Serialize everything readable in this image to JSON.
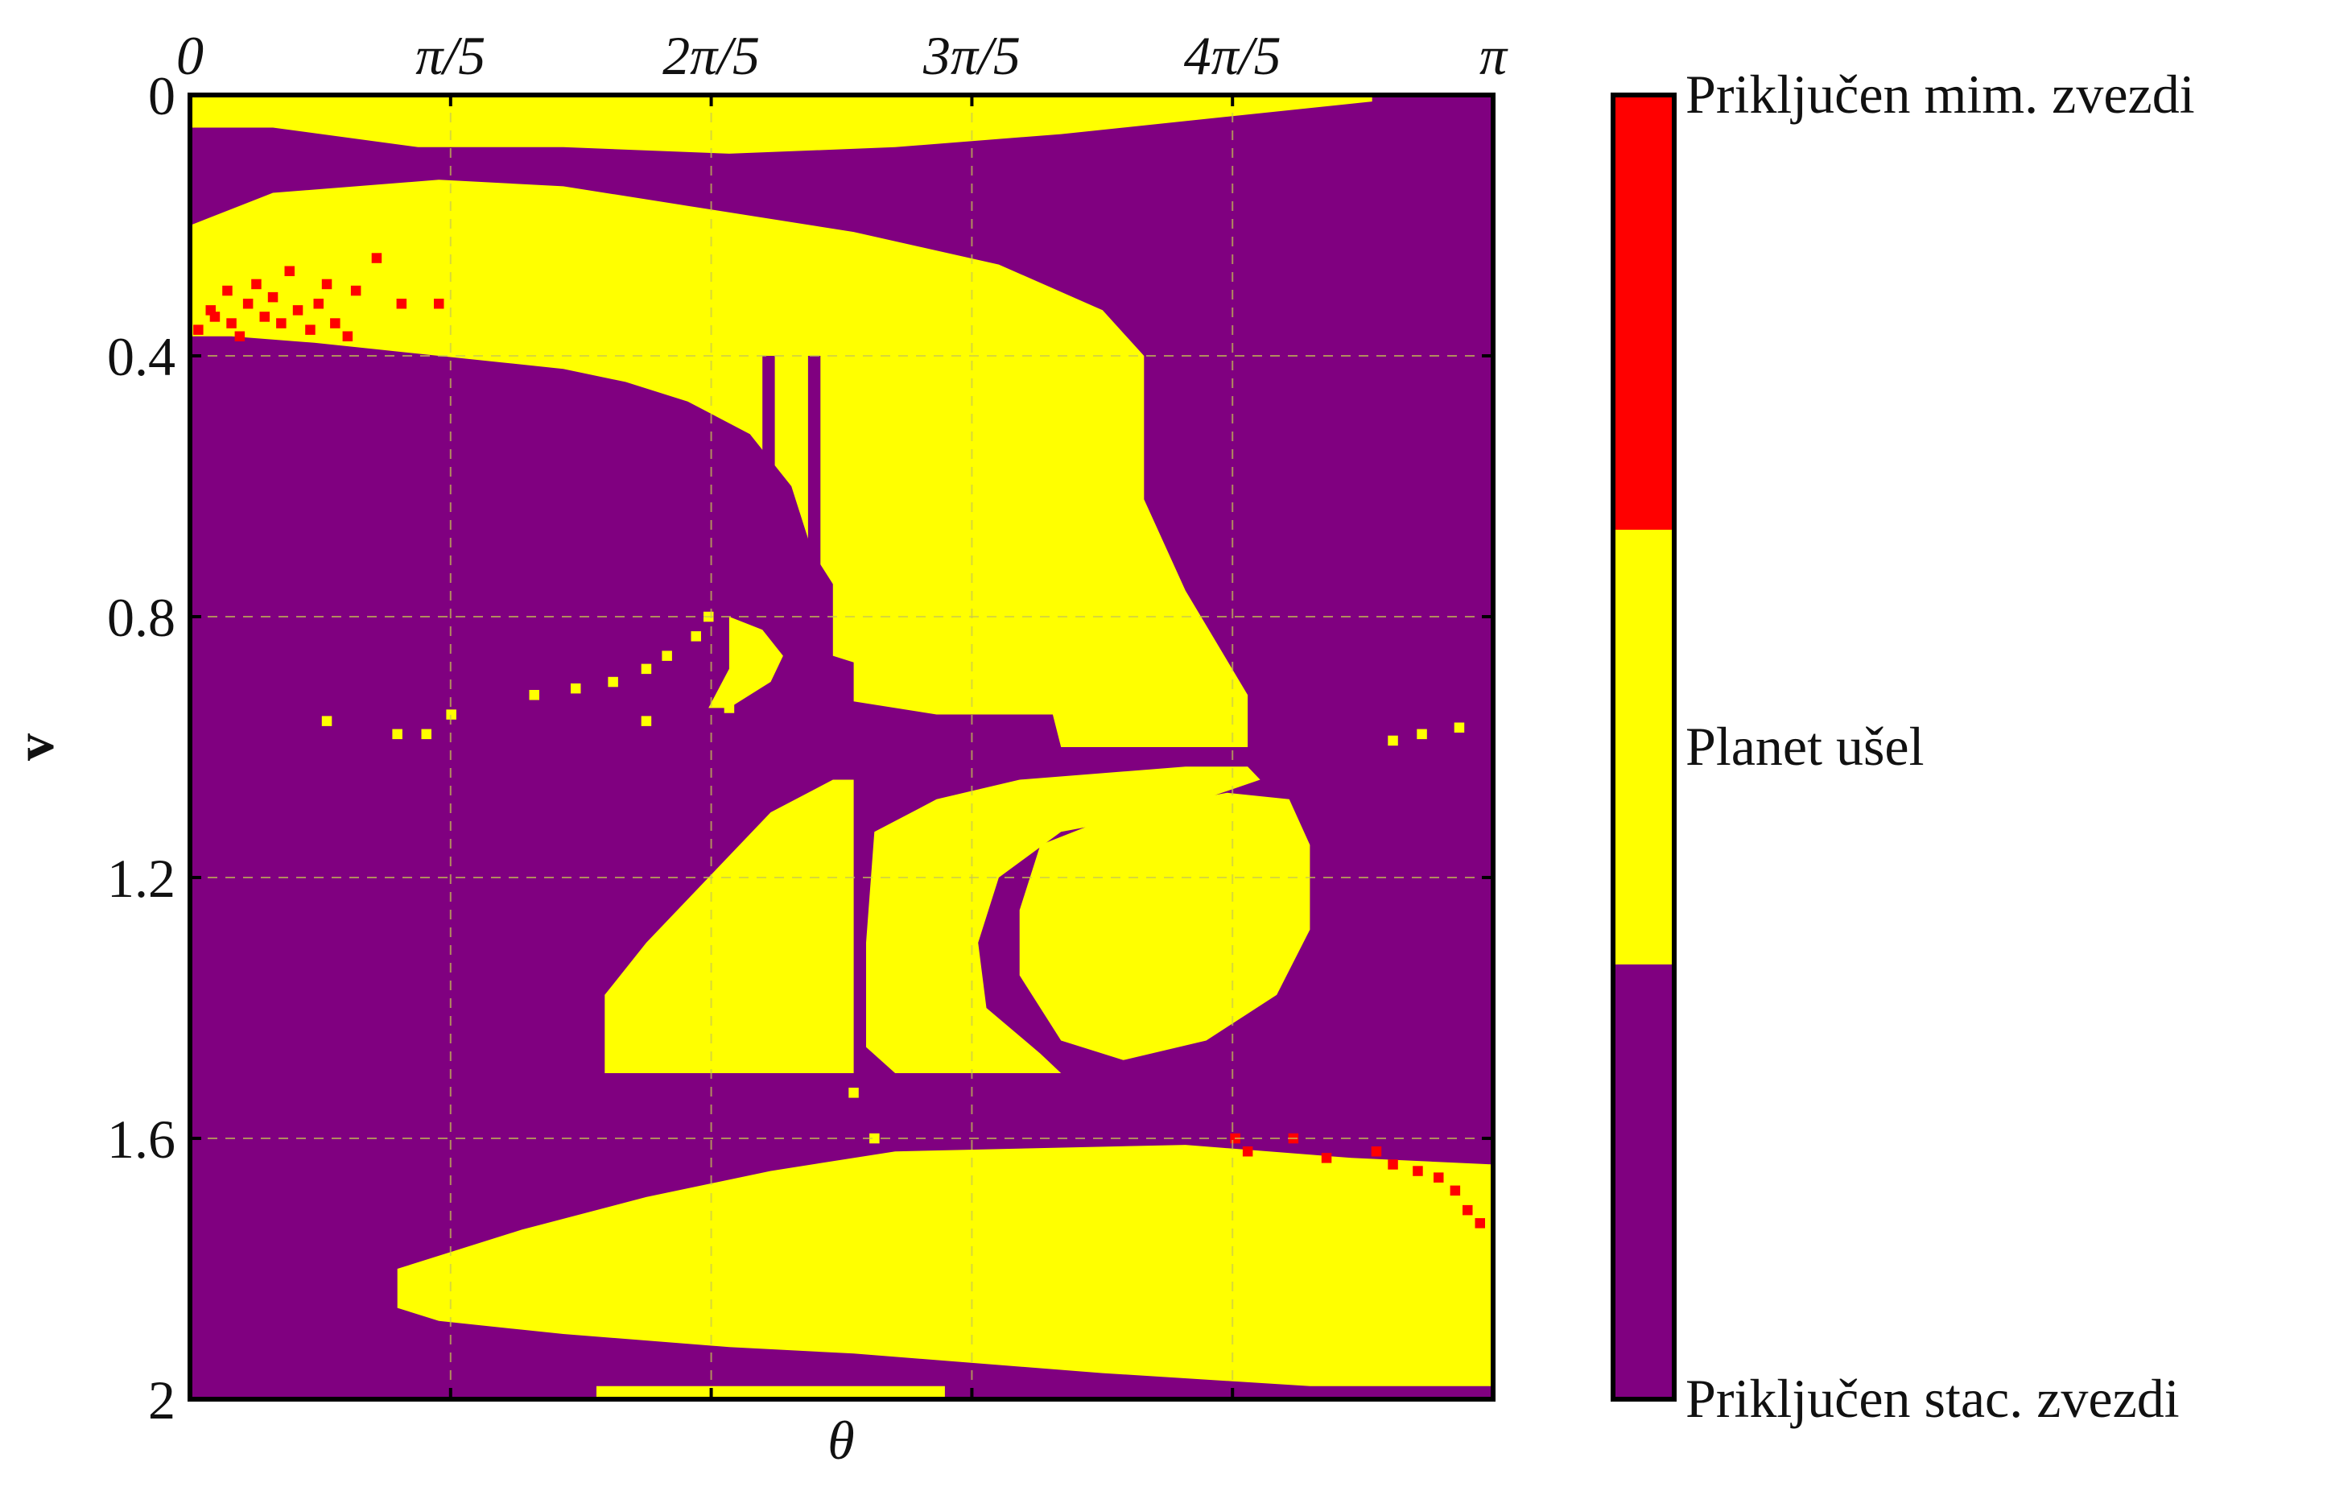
{
  "chart_data": {
    "type": "heatmap",
    "title": "",
    "xlabel": "θ",
    "ylabel": "v",
    "xlim": [
      0,
      3.14159
    ],
    "ylim": [
      0,
      2
    ],
    "y_inverted": true,
    "x_ticks": [
      {
        "value": 0,
        "label": "0"
      },
      {
        "value": 0.6283,
        "label": "π/5"
      },
      {
        "value": 1.2566,
        "label": "2π/5"
      },
      {
        "value": 1.885,
        "label": "3π/5"
      },
      {
        "value": 2.5133,
        "label": "4π/5"
      },
      {
        "value": 3.1416,
        "label": "π"
      }
    ],
    "x_ticks_position": "top",
    "y_ticks": [
      {
        "value": 0,
        "label": "0"
      },
      {
        "value": 0.4,
        "label": "0.4"
      },
      {
        "value": 0.8,
        "label": "0.8"
      },
      {
        "value": 1.2,
        "label": "1.2"
      },
      {
        "value": 1.6,
        "label": "1.6"
      },
      {
        "value": 2,
        "label": "2"
      }
    ],
    "grid": true,
    "colors": {
      "stationary": "#800080",
      "escaped": "#ffff00",
      "passing": "#ff0000",
      "grid": "#c8c850",
      "frame": "#000000"
    },
    "colorbar": {
      "position": "right",
      "entries": [
        {
          "key": "passing",
          "label": "Priključen mim. zvezdi"
        },
        {
          "key": "escaped",
          "label": "Planet ušel"
        },
        {
          "key": "stationary",
          "label": "Priključen stac. zvezdi"
        }
      ]
    },
    "background_class": "stationary",
    "regions": [
      {
        "class": "escaped",
        "name": "top-band",
        "points": [
          [
            0,
            0
          ],
          [
            2.85,
            0
          ],
          [
            2.85,
            0.01
          ],
          [
            2.4,
            0.04
          ],
          [
            2.1,
            0.06
          ],
          [
            1.7,
            0.08
          ],
          [
            1.3,
            0.09
          ],
          [
            0.9,
            0.08
          ],
          [
            0.55,
            0.08
          ],
          [
            0.2,
            0.05
          ],
          [
            0,
            0.05
          ]
        ]
      },
      {
        "class": "escaped",
        "name": "upper-arc",
        "points": [
          [
            0,
            0.2
          ],
          [
            0.2,
            0.15
          ],
          [
            0.6,
            0.13
          ],
          [
            0.9,
            0.14
          ],
          [
            1.2,
            0.17
          ],
          [
            1.6,
            0.21
          ],
          [
            1.95,
            0.26
          ],
          [
            2.2,
            0.33
          ],
          [
            2.3,
            0.4
          ],
          [
            2.3,
            0.62
          ],
          [
            2.4,
            0.76
          ],
          [
            2.55,
            0.92
          ],
          [
            2.55,
            1.0
          ],
          [
            2.1,
            1.0
          ],
          [
            2.08,
            0.95
          ],
          [
            1.8,
            0.95
          ],
          [
            1.6,
            0.93
          ],
          [
            1.6,
            0.87
          ],
          [
            1.55,
            0.86
          ],
          [
            1.55,
            0.75
          ],
          [
            1.5,
            0.7
          ],
          [
            1.45,
            0.6
          ],
          [
            1.35,
            0.52
          ],
          [
            1.2,
            0.47
          ],
          [
            1.05,
            0.44
          ],
          [
            0.9,
            0.42
          ],
          [
            0.75,
            0.41
          ],
          [
            0.6,
            0.4
          ],
          [
            0.45,
            0.39
          ],
          [
            0.3,
            0.38
          ],
          [
            0.1,
            0.37
          ],
          [
            0,
            0.37
          ]
        ]
      },
      {
        "class": "stationary",
        "name": "stripe-a",
        "points": [
          [
            1.38,
            0.4
          ],
          [
            1.41,
            0.4
          ],
          [
            1.41,
            0.8
          ],
          [
            1.38,
            0.8
          ]
        ]
      },
      {
        "class": "stationary",
        "name": "stripe-b",
        "points": [
          [
            1.49,
            0.4
          ],
          [
            1.52,
            0.4
          ],
          [
            1.52,
            0.75
          ],
          [
            1.49,
            0.75
          ]
        ]
      },
      {
        "class": "escaped",
        "name": "arc-tail",
        "points": [
          [
            1.3,
            0.8
          ],
          [
            1.38,
            0.82
          ],
          [
            1.43,
            0.86
          ],
          [
            1.4,
            0.9
          ],
          [
            1.3,
            0.94
          ],
          [
            1.25,
            0.94
          ],
          [
            1.3,
            0.88
          ]
        ]
      },
      {
        "class": "escaped",
        "name": "left-triangle",
        "points": [
          [
            1.55,
            1.05
          ],
          [
            1.6,
            1.05
          ],
          [
            1.6,
            1.5
          ],
          [
            1.0,
            1.5
          ],
          [
            1.0,
            1.38
          ],
          [
            1.1,
            1.3
          ],
          [
            1.25,
            1.2
          ],
          [
            1.4,
            1.1
          ]
        ]
      },
      {
        "class": "escaped",
        "name": "middle-wedge",
        "points": [
          [
            1.65,
            1.13
          ],
          [
            1.8,
            1.08
          ],
          [
            2.0,
            1.05
          ],
          [
            2.4,
            1.03
          ],
          [
            2.55,
            1.03
          ],
          [
            2.58,
            1.05
          ],
          [
            2.35,
            1.1
          ],
          [
            2.1,
            1.13
          ],
          [
            1.95,
            1.2
          ],
          [
            1.9,
            1.3
          ],
          [
            1.92,
            1.4
          ],
          [
            2.05,
            1.47
          ],
          [
            2.1,
            1.5
          ],
          [
            1.7,
            1.5
          ],
          [
            1.63,
            1.46
          ],
          [
            1.63,
            1.3
          ]
        ]
      },
      {
        "class": "escaped",
        "name": "right-oval",
        "points": [
          [
            2.0,
            1.25
          ],
          [
            2.05,
            1.15
          ],
          [
            2.25,
            1.1
          ],
          [
            2.5,
            1.07
          ],
          [
            2.65,
            1.08
          ],
          [
            2.7,
            1.15
          ],
          [
            2.7,
            1.28
          ],
          [
            2.62,
            1.38
          ],
          [
            2.45,
            1.45
          ],
          [
            2.25,
            1.48
          ],
          [
            2.1,
            1.45
          ],
          [
            2.0,
            1.35
          ]
        ]
      },
      {
        "class": "escaped",
        "name": "bottom-lens",
        "points": [
          [
            0.5,
            1.8
          ],
          [
            0.8,
            1.74
          ],
          [
            1.1,
            1.69
          ],
          [
            1.4,
            1.65
          ],
          [
            1.7,
            1.62
          ],
          [
            2.4,
            1.61
          ],
          [
            2.8,
            1.63
          ],
          [
            3.14,
            1.64
          ],
          [
            3.14,
            1.98
          ],
          [
            2.7,
            1.98
          ],
          [
            2.2,
            1.96
          ],
          [
            1.8,
            1.94
          ],
          [
            1.6,
            1.93
          ],
          [
            1.3,
            1.92
          ],
          [
            0.9,
            1.9
          ],
          [
            0.6,
            1.88
          ],
          [
            0.5,
            1.86
          ]
        ]
      },
      {
        "class": "escaped",
        "name": "bottom-strip",
        "points": [
          [
            0.98,
            1.98
          ],
          [
            1.82,
            1.98
          ],
          [
            1.82,
            2.0
          ],
          [
            0.98,
            2.0
          ]
        ]
      }
    ],
    "speckles": [
      {
        "class": "passing",
        "theta": 0.02,
        "v": 0.36
      },
      {
        "class": "passing",
        "theta": 0.05,
        "v": 0.33
      },
      {
        "class": "passing",
        "theta": 0.06,
        "v": 0.34
      },
      {
        "class": "passing",
        "theta": 0.09,
        "v": 0.3
      },
      {
        "class": "passing",
        "theta": 0.1,
        "v": 0.35
      },
      {
        "class": "passing",
        "theta": 0.12,
        "v": 0.37
      },
      {
        "class": "passing",
        "theta": 0.14,
        "v": 0.32
      },
      {
        "class": "passing",
        "theta": 0.16,
        "v": 0.29
      },
      {
        "class": "passing",
        "theta": 0.18,
        "v": 0.34
      },
      {
        "class": "passing",
        "theta": 0.2,
        "v": 0.31
      },
      {
        "class": "passing",
        "theta": 0.22,
        "v": 0.35
      },
      {
        "class": "passing",
        "theta": 0.24,
        "v": 0.27
      },
      {
        "class": "passing",
        "theta": 0.26,
        "v": 0.33
      },
      {
        "class": "passing",
        "theta": 0.29,
        "v": 0.36
      },
      {
        "class": "passing",
        "theta": 0.31,
        "v": 0.32
      },
      {
        "class": "passing",
        "theta": 0.33,
        "v": 0.29
      },
      {
        "class": "passing",
        "theta": 0.35,
        "v": 0.35
      },
      {
        "class": "passing",
        "theta": 0.38,
        "v": 0.37
      },
      {
        "class": "passing",
        "theta": 0.4,
        "v": 0.3
      },
      {
        "class": "passing",
        "theta": 0.45,
        "v": 0.25
      },
      {
        "class": "passing",
        "theta": 0.51,
        "v": 0.32
      },
      {
        "class": "passing",
        "theta": 0.6,
        "v": 0.32
      },
      {
        "class": "passing",
        "theta": 2.52,
        "v": 1.6
      },
      {
        "class": "passing",
        "theta": 2.55,
        "v": 1.62
      },
      {
        "class": "passing",
        "theta": 2.66,
        "v": 1.6
      },
      {
        "class": "passing",
        "theta": 2.74,
        "v": 1.63
      },
      {
        "class": "passing",
        "theta": 2.86,
        "v": 1.62
      },
      {
        "class": "passing",
        "theta": 2.9,
        "v": 1.64
      },
      {
        "class": "passing",
        "theta": 2.96,
        "v": 1.65
      },
      {
        "class": "passing",
        "theta": 3.01,
        "v": 1.66
      },
      {
        "class": "passing",
        "theta": 3.05,
        "v": 1.68
      },
      {
        "class": "passing",
        "theta": 3.08,
        "v": 1.71
      },
      {
        "class": "passing",
        "theta": 3.11,
        "v": 1.73
      },
      {
        "class": "escaped",
        "theta": 0.33,
        "v": 0.96
      },
      {
        "class": "escaped",
        "theta": 0.5,
        "v": 0.98
      },
      {
        "class": "escaped",
        "theta": 0.57,
        "v": 0.98
      },
      {
        "class": "escaped",
        "theta": 0.63,
        "v": 0.95
      },
      {
        "class": "escaped",
        "theta": 0.83,
        "v": 0.92
      },
      {
        "class": "escaped",
        "theta": 0.93,
        "v": 0.91
      },
      {
        "class": "escaped",
        "theta": 1.02,
        "v": 0.9
      },
      {
        "class": "escaped",
        "theta": 1.1,
        "v": 0.88
      },
      {
        "class": "escaped",
        "theta": 1.15,
        "v": 0.86
      },
      {
        "class": "escaped",
        "theta": 1.22,
        "v": 0.83
      },
      {
        "class": "escaped",
        "theta": 1.25,
        "v": 0.8
      },
      {
        "class": "escaped",
        "theta": 1.1,
        "v": 0.96
      },
      {
        "class": "escaped",
        "theta": 1.3,
        "v": 0.94
      },
      {
        "class": "escaped",
        "theta": 1.6,
        "v": 1.53
      },
      {
        "class": "escaped",
        "theta": 1.65,
        "v": 1.6
      },
      {
        "class": "escaped",
        "theta": 2.9,
        "v": 0.99
      },
      {
        "class": "escaped",
        "theta": 2.97,
        "v": 0.98
      },
      {
        "class": "escaped",
        "theta": 3.06,
        "v": 0.97
      }
    ]
  }
}
